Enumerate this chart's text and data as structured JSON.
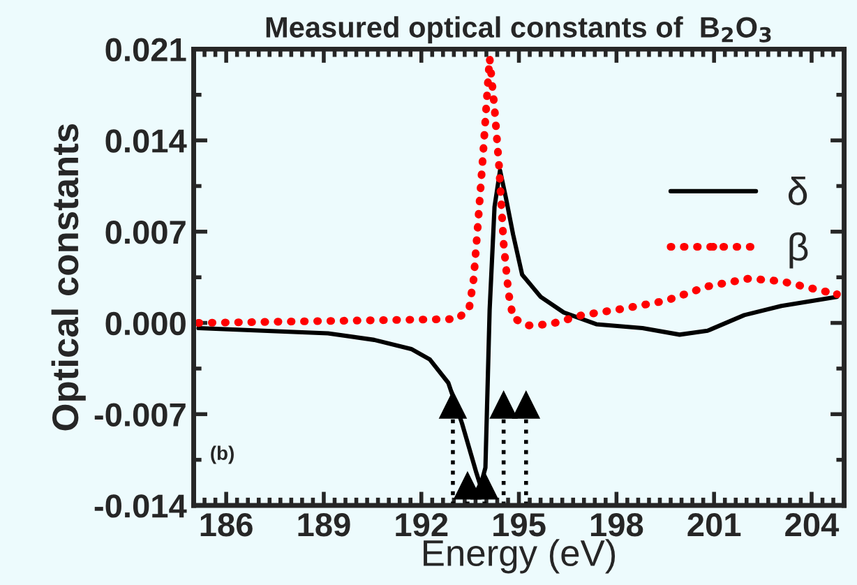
{
  "chart_data": {
    "type": "line",
    "title": "Measured optical constants of  B$_{2}$O$_{3}$",
    "xlabel": "Energy (eV)",
    "ylabel": "Optical constants",
    "annotations": [
      "(b)"
    ],
    "xlim": [
      185,
      205
    ],
    "xticks": [
      186,
      189,
      192,
      195,
      198,
      201,
      204
    ],
    "ylim": [
      -0.014,
      0.021
    ],
    "yticks": [
      {
        "value": -0.014,
        "label": "-0.014"
      },
      {
        "value": -0.007,
        "label": "-0.007"
      },
      {
        "value": 0,
        "label": "0.000"
      },
      {
        "value": 0.007,
        "label": "0.007"
      },
      {
        "value": 0.014,
        "label": "0.014"
      },
      {
        "value": 0.021,
        "label": "0.021"
      }
    ],
    "grid": false,
    "legend": "right",
    "series": [
      {
        "name": "δ",
        "color": "#000000",
        "line_style": "solid",
        "marker": "none",
        "x": [
          185.15,
          189.13,
          190.55,
          191.69,
          192.26,
          192.83,
          193.25,
          193.68,
          193.82,
          193.97,
          194.1,
          194.25,
          194.42,
          194.6,
          194.82,
          195.1,
          195.67,
          196.38,
          197.38,
          198.8,
          199.94,
          200.8,
          201.93,
          203.07,
          204.78
        ],
        "values": [
          -0.0004,
          -0.0008,
          -0.0013,
          -0.002,
          -0.0028,
          -0.0046,
          -0.0077,
          -0.0114,
          -0.0125,
          -0.0111,
          0.001,
          0.0089,
          0.0117,
          0.0096,
          0.0068,
          0.0037,
          0.002,
          0.0008,
          -0.0001,
          -0.0004,
          -0.0009,
          -0.0006,
          0.0006,
          0.0013,
          0.002
        ]
      },
      {
        "name": "β",
        "color": "#ff0000",
        "line_style": "dotted",
        "marker": "none",
        "x": [
          185.15,
          193.11,
          193.47,
          193.61,
          193.75,
          193.9,
          194.04,
          194.1,
          194.25,
          194.39,
          194.53,
          194.68,
          194.82,
          195.25,
          195.96,
          196.95,
          198.23,
          199.51,
          200.8,
          202.07,
          203.07,
          203.92,
          204.78
        ],
        "values": [
          0,
          0.0003,
          0.0011,
          0.0034,
          0.0079,
          0.013,
          0.0182,
          0.0203,
          0.0165,
          0.012,
          0.0061,
          0.0023,
          0.0004,
          -0.0002,
          -0.0001,
          0.0006,
          0.0011,
          0.0017,
          0.0028,
          0.0034,
          0.0032,
          0.0027,
          0.0022
        ]
      },
      {
        "type": "lollipop",
        "color": "#000000",
        "line_style": "dotted",
        "marker": "triangle",
        "x": [
          192.97,
          193.42,
          193.94,
          194.53,
          195.22
        ],
        "values": [
          -0.0063,
          -0.0125,
          -0.0125,
          -0.0063,
          -0.0063
        ]
      }
    ]
  }
}
